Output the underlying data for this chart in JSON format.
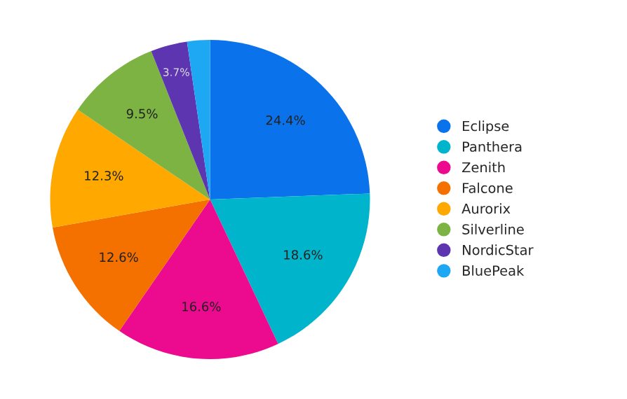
{
  "chart_data": {
    "type": "pie",
    "categories": [
      "Eclipse",
      "Panthera",
      "Zenith",
      "Falcone",
      "Aurorix",
      "Silverline",
      "NordicStar",
      "BluePeak"
    ],
    "values": [
      24.4,
      18.6,
      16.6,
      12.6,
      12.3,
      9.5,
      3.7,
      2.3
    ],
    "value_labels": [
      "24.4%",
      "18.6%",
      "16.6%",
      "12.6%",
      "12.3%",
      "9.5%",
      "3.7%",
      null
    ],
    "colors": [
      "#0a73eb",
      "#00b4cc",
      "#ec0a8f",
      "#f47100",
      "#ffa800",
      "#7cb342",
      "#5e35b1",
      "#1ea8f3"
    ],
    "legend": "right"
  }
}
